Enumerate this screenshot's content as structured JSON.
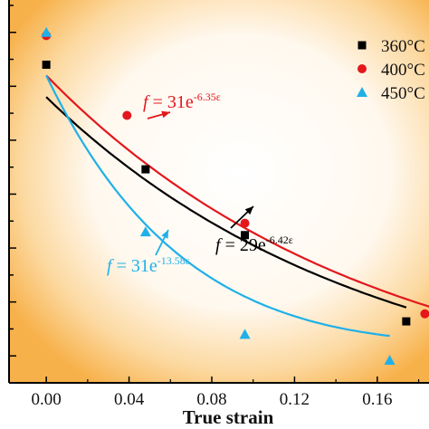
{
  "chart_data": {
    "type": "scatter",
    "title": "",
    "xlabel": "True strain",
    "ylabel": "",
    "xlim": [
      -0.018,
      0.185
    ],
    "ylim": [
      2.5,
      38
    ],
    "xticks": [
      0.0,
      0.04,
      0.08,
      0.12,
      0.16
    ],
    "xtick_labels": [
      "0.00",
      "0.04",
      "0.08",
      "0.12",
      "0.16"
    ],
    "ytick_labels_visible": false,
    "grid": false,
    "background": "radial orange glow",
    "legend_position": "top-right",
    "series": [
      {
        "name": "360°C",
        "marker": "square",
        "color": "#000000",
        "x": [
          0.0,
          0.048,
          0.096,
          0.174
        ],
        "y": [
          32.0,
          22.3,
          16.2,
          8.2
        ],
        "fit": {
          "a": 29,
          "b": -6.42
        }
      },
      {
        "name": "400°C",
        "marker": "circle",
        "color": "#e3171c",
        "x": [
          0.0,
          0.039,
          0.096,
          0.183
        ],
        "y": [
          34.7,
          27.3,
          17.3,
          8.9
        ],
        "fit": {
          "a": 31,
          "b": -6.35
        }
      },
      {
        "name": "450°C",
        "marker": "triangle",
        "color": "#1fb0e8",
        "x": [
          0.0,
          0.048,
          0.096,
          0.166
        ],
        "y": [
          35.0,
          16.5,
          7.0,
          4.6
        ],
        "fit": {
          "a": 31,
          "b": -13.58
        }
      }
    ],
    "annotations": [
      {
        "series": "400°C",
        "prefix": "f",
        "text": " = 31e",
        "exponent": "-6.35ε"
      },
      {
        "series": "360°C",
        "prefix": "f",
        "text": " = 29e",
        "exponent": "-6.42ε"
      },
      {
        "series": "450°C",
        "prefix": "f",
        "text": " = 31e",
        "exponent": "-13.58ε"
      }
    ]
  },
  "colors": {
    "black": "#000000",
    "red": "#e3171c",
    "blue": "#1fb0e8",
    "glow": "#f7b14a"
  }
}
